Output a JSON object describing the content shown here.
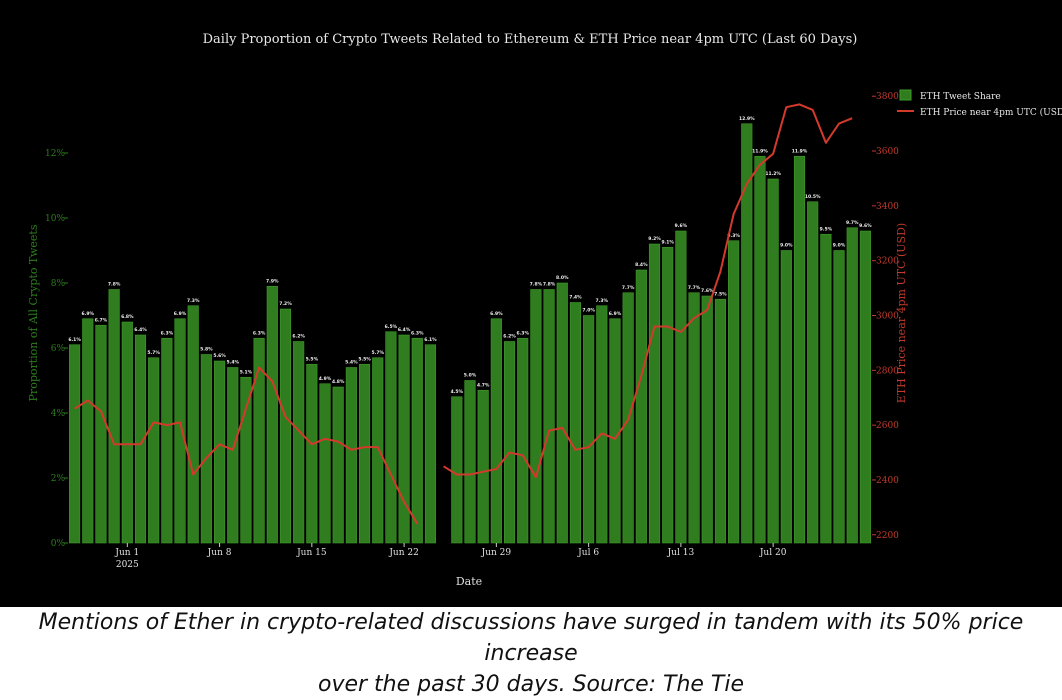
{
  "caption": {
    "line1": "Mentions of Ether in crypto-related discussions have surged in tandem with its 50% price increase",
    "line2": "over the past 30 days. Source: The Tie"
  },
  "colors": {
    "background": "#000000",
    "bar": "#2f7d1f",
    "bar_edge": "#3f9a2a",
    "price_line": "#d33a2c",
    "left_axis": "#2e7d1e",
    "right_axis": "#c0392b",
    "text": "#e0e0e0"
  },
  "chart_data": {
    "type": "bar",
    "title": "Daily Proportion of Crypto Tweets Related to Ethereum & ETH Price near 4pm UTC (Last 60 Days)",
    "xlabel": "Date",
    "ylabel": "Proportion of All Crypto Tweets",
    "y2label": "ETH Price near 4pm UTC (USD)",
    "ylim": [
      0,
      14
    ],
    "y_ticks": [
      0,
      2,
      4,
      6,
      8,
      10,
      12
    ],
    "y_tick_labels": [
      "0%",
      "2%",
      "4%",
      "6%",
      "8%",
      "10%",
      "12%"
    ],
    "y2lim": [
      2170,
      3830
    ],
    "y2_ticks": [
      2200,
      2400,
      2600,
      2800,
      3000,
      3200,
      3400,
      3600,
      3800
    ],
    "x_tick_labels": [
      {
        "date": "2025-06-01",
        "label": "Jun 1",
        "sublabel": "2025"
      },
      {
        "date": "2025-06-08",
        "label": "Jun 8",
        "sublabel": ""
      },
      {
        "date": "2025-06-15",
        "label": "Jun 15",
        "sublabel": ""
      },
      {
        "date": "2025-06-22",
        "label": "Jun 22",
        "sublabel": ""
      },
      {
        "date": "2025-06-29",
        "label": "Jun 29",
        "sublabel": ""
      },
      {
        "date": "2025-07-06",
        "label": "Jul 6",
        "sublabel": ""
      },
      {
        "date": "2025-07-13",
        "label": "Jul 13",
        "sublabel": ""
      },
      {
        "date": "2025-07-20",
        "label": "Jul 20",
        "sublabel": ""
      }
    ],
    "legend": {
      "position": "top-right",
      "entries": [
        "ETH Tweet Share",
        "ETH Price near 4pm UTC (USD"
      ]
    },
    "grid": false,
    "series": [
      {
        "name": "ETH Tweet Share",
        "type": "bar",
        "axis": "left",
        "points": [
          {
            "date": "2025-05-28",
            "value": 6.1,
            "label": "6.1%"
          },
          {
            "date": "2025-05-29",
            "value": 6.9,
            "label": "6.9%"
          },
          {
            "date": "2025-05-30",
            "value": 6.7,
            "label": "6.7%"
          },
          {
            "date": "2025-05-31",
            "value": 7.8,
            "label": "7.8%"
          },
          {
            "date": "2025-06-01",
            "value": 6.8,
            "label": "6.8%"
          },
          {
            "date": "2025-06-02",
            "value": 6.4,
            "label": "6.4%"
          },
          {
            "date": "2025-06-03",
            "value": 5.7,
            "label": "5.7%"
          },
          {
            "date": "2025-06-04",
            "value": 6.3,
            "label": "6.3%"
          },
          {
            "date": "2025-06-05",
            "value": 6.9,
            "label": "6.9%"
          },
          {
            "date": "2025-06-06",
            "value": 7.3,
            "label": "7.3%"
          },
          {
            "date": "2025-06-07",
            "value": 5.8,
            "label": "5.8%"
          },
          {
            "date": "2025-06-08",
            "value": 5.6,
            "label": "5.6%"
          },
          {
            "date": "2025-06-09",
            "value": 5.4,
            "label": "5.4%"
          },
          {
            "date": "2025-06-10",
            "value": 5.1,
            "label": "5.1%"
          },
          {
            "date": "2025-06-11",
            "value": 6.3,
            "label": "6.3%"
          },
          {
            "date": "2025-06-12",
            "value": 7.9,
            "label": "7.9%"
          },
          {
            "date": "2025-06-13",
            "value": 7.2,
            "label": "7.2%"
          },
          {
            "date": "2025-06-14",
            "value": 6.2,
            "label": "6.2%"
          },
          {
            "date": "2025-06-15",
            "value": 5.5,
            "label": "5.5%"
          },
          {
            "date": "2025-06-16",
            "value": 4.9,
            "label": "4.9%"
          },
          {
            "date": "2025-06-17",
            "value": 4.8,
            "label": "4.8%"
          },
          {
            "date": "2025-06-18",
            "value": 5.4,
            "label": "5.4%"
          },
          {
            "date": "2025-06-19",
            "value": 5.5,
            "label": "5.5%"
          },
          {
            "date": "2025-06-20",
            "value": 5.7,
            "label": "5.7%"
          },
          {
            "date": "2025-06-21",
            "value": 6.5,
            "label": "6.5%"
          },
          {
            "date": "2025-06-22",
            "value": 6.4,
            "label": "6.4%"
          },
          {
            "date": "2025-06-23",
            "value": 6.3,
            "label": "6.3%"
          },
          {
            "date": "2025-06-24",
            "value": 6.1,
            "label": "6.1%"
          },
          {
            "date": "2025-06-26",
            "value": 4.5,
            "label": "4.5%"
          },
          {
            "date": "2025-06-27",
            "value": 5.0,
            "label": "5.0%"
          },
          {
            "date": "2025-06-28",
            "value": 4.7,
            "label": "4.7%"
          },
          {
            "date": "2025-06-29",
            "value": 6.9,
            "label": "6.9%"
          },
          {
            "date": "2025-06-30",
            "value": 6.2,
            "label": "6.2%"
          },
          {
            "date": "2025-07-01",
            "value": 6.3,
            "label": "6.3%"
          },
          {
            "date": "2025-07-02",
            "value": 7.8,
            "label": "7.8%"
          },
          {
            "date": "2025-07-03",
            "value": 7.8,
            "label": "7.8%"
          },
          {
            "date": "2025-07-04",
            "value": 8.0,
            "label": "8.0%"
          },
          {
            "date": "2025-07-05",
            "value": 7.4,
            "label": "7.4%"
          },
          {
            "date": "2025-07-06",
            "value": 7.0,
            "label": "7.0%"
          },
          {
            "date": "2025-07-07",
            "value": 7.3,
            "label": "7.3%"
          },
          {
            "date": "2025-07-08",
            "value": 6.9,
            "label": "6.9%"
          },
          {
            "date": "2025-07-09",
            "value": 7.7,
            "label": "7.7%"
          },
          {
            "date": "2025-07-10",
            "value": 8.4,
            "label": "8.4%"
          },
          {
            "date": "2025-07-11",
            "value": 9.2,
            "label": "9.2%"
          },
          {
            "date": "2025-07-12",
            "value": 9.1,
            "label": "9.1%"
          },
          {
            "date": "2025-07-13",
            "value": 9.6,
            "label": "9.6%"
          },
          {
            "date": "2025-07-14",
            "value": 7.7,
            "label": "7.7%"
          },
          {
            "date": "2025-07-15",
            "value": 7.6,
            "label": "7.6%"
          },
          {
            "date": "2025-07-16",
            "value": 7.5,
            "label": "7.5%"
          },
          {
            "date": "2025-07-17",
            "value": 9.3,
            "label": "9.3%"
          },
          {
            "date": "2025-07-18",
            "value": 12.9,
            "label": "12.9%"
          },
          {
            "date": "2025-07-19",
            "value": 11.9,
            "label": "11.9%"
          },
          {
            "date": "2025-07-20",
            "value": 11.2,
            "label": "11.2%"
          },
          {
            "date": "2025-07-21",
            "value": 9.0,
            "label": "9.0%"
          },
          {
            "date": "2025-07-22",
            "value": 11.9,
            "label": "11.9%"
          },
          {
            "date": "2025-07-23",
            "value": 10.5,
            "label": "10.5%"
          },
          {
            "date": "2025-07-24",
            "value": 9.5,
            "label": "9.5%"
          },
          {
            "date": "2025-07-25",
            "value": 9.0,
            "label": "9.0%"
          },
          {
            "date": "2025-07-26",
            "value": 9.7,
            "label": "9.7%"
          },
          {
            "date": "2025-07-27",
            "value": 9.6,
            "label": "9.6%"
          }
        ]
      },
      {
        "name": "ETH Price near 4pm UTC (USD",
        "type": "line",
        "axis": "right",
        "segments": [
          [
            {
              "date": "2025-05-28",
              "value": 2660
            },
            {
              "date": "2025-05-29",
              "value": 2690
            },
            {
              "date": "2025-05-30",
              "value": 2650
            },
            {
              "date": "2025-05-31",
              "value": 2530
            },
            {
              "date": "2025-06-01",
              "value": 2530
            },
            {
              "date": "2025-06-02",
              "value": 2530
            },
            {
              "date": "2025-06-03",
              "value": 2610
            },
            {
              "date": "2025-06-04",
              "value": 2600
            },
            {
              "date": "2025-06-05",
              "value": 2610
            },
            {
              "date": "2025-06-06",
              "value": 2420
            },
            {
              "date": "2025-06-07",
              "value": 2480
            },
            {
              "date": "2025-06-08",
              "value": 2530
            },
            {
              "date": "2025-06-09",
              "value": 2510
            },
            {
              "date": "2025-06-10",
              "value": 2660
            },
            {
              "date": "2025-06-11",
              "value": 2810
            },
            {
              "date": "2025-06-12",
              "value": 2760
            },
            {
              "date": "2025-06-13",
              "value": 2630
            },
            {
              "date": "2025-06-14",
              "value": 2580
            },
            {
              "date": "2025-06-15",
              "value": 2530
            },
            {
              "date": "2025-06-16",
              "value": 2550
            },
            {
              "date": "2025-06-17",
              "value": 2540
            },
            {
              "date": "2025-06-18",
              "value": 2510
            },
            {
              "date": "2025-06-19",
              "value": 2520
            },
            {
              "date": "2025-06-20",
              "value": 2520
            },
            {
              "date": "2025-06-21",
              "value": 2420
            },
            {
              "date": "2025-06-22",
              "value": 2320
            },
            {
              "date": "2025-06-23",
              "value": 2240
            }
          ],
          [
            {
              "date": "2025-06-25",
              "value": 2450
            },
            {
              "date": "2025-06-26",
              "value": 2420
            },
            {
              "date": "2025-06-27",
              "value": 2420
            },
            {
              "date": "2025-06-28",
              "value": 2430
            },
            {
              "date": "2025-06-29",
              "value": 2440
            },
            {
              "date": "2025-06-30",
              "value": 2500
            },
            {
              "date": "2025-07-01",
              "value": 2490
            },
            {
              "date": "2025-07-02",
              "value": 2410
            },
            {
              "date": "2025-07-03",
              "value": 2580
            },
            {
              "date": "2025-07-04",
              "value": 2590
            },
            {
              "date": "2025-07-05",
              "value": 2510
            },
            {
              "date": "2025-07-06",
              "value": 2520
            },
            {
              "date": "2025-07-07",
              "value": 2570
            },
            {
              "date": "2025-07-08",
              "value": 2550
            },
            {
              "date": "2025-07-09",
              "value": 2620
            },
            {
              "date": "2025-07-10",
              "value": 2780
            },
            {
              "date": "2025-07-11",
              "value": 2960
            },
            {
              "date": "2025-07-12",
              "value": 2960
            },
            {
              "date": "2025-07-13",
              "value": 2940
            },
            {
              "date": "2025-07-14",
              "value": 2990
            },
            {
              "date": "2025-07-15",
              "value": 3020
            },
            {
              "date": "2025-07-16",
              "value": 3160
            },
            {
              "date": "2025-07-17",
              "value": 3370
            },
            {
              "date": "2025-07-18",
              "value": 3480
            },
            {
              "date": "2025-07-19",
              "value": 3550
            },
            {
              "date": "2025-07-20",
              "value": 3590
            },
            {
              "date": "2025-07-21",
              "value": 3760
            },
            {
              "date": "2025-07-22",
              "value": 3770
            },
            {
              "date": "2025-07-23",
              "value": 3750
            },
            {
              "date": "2025-07-24",
              "value": 3630
            },
            {
              "date": "2025-07-25",
              "value": 3700
            },
            {
              "date": "2025-07-26",
              "value": 3720
            }
          ]
        ]
      }
    ]
  }
}
